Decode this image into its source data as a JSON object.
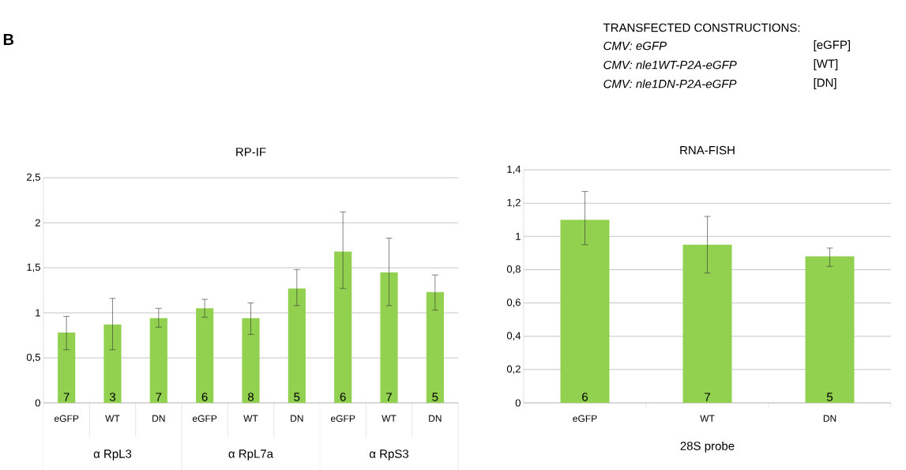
{
  "chart_data": [
    {
      "type": "other",
      "annotations": [
        "B",
        "TRANSFECTED CONSTRUCTIONS:",
        "CMV: eGFP",
        "[eGFP]",
        "CMV: nle1WT-P2A-eGFP",
        "[WT]",
        "CMV: nle1DN-P2A-eGFP",
        "[DN]"
      ]
    },
    {
      "type": "bar",
      "title": "RP-IF",
      "categories": [
        "eGFP",
        "WT",
        "DN",
        "eGFP",
        "WT",
        "DN",
        "eGFP",
        "WT",
        "DN"
      ],
      "values": [
        0.78,
        0.87,
        0.94,
        1.05,
        0.94,
        1.27,
        1.68,
        1.45,
        1.23
      ],
      "errors": [
        [
          0.59,
          0.96
        ],
        [
          0.59,
          1.16
        ],
        [
          0.84,
          1.05
        ],
        [
          0.95,
          1.15
        ],
        [
          0.76,
          1.11
        ],
        [
          1.08,
          1.48
        ],
        [
          1.27,
          2.12
        ],
        [
          1.08,
          1.83
        ],
        [
          1.03,
          1.42
        ]
      ],
      "color": "#92d050",
      "ylim": [
        0,
        2.5
      ],
      "yticks": [
        0,
        {
          "value": 0.5,
          "label": "0,5"
        },
        1,
        {
          "value": 1.5,
          "label": "1,5"
        },
        2,
        {
          "value": 2.5,
          "label": "2,5"
        }
      ],
      "grid": "y",
      "annotations": [
        "7",
        "3",
        "7",
        "6",
        "8",
        "5",
        "6",
        "7",
        "5",
        "α RpL3",
        "α RpL7a",
        "α RpS3"
      ]
    },
    {
      "type": "bar",
      "title": "RNA-FISH",
      "xlabel": "28S probe",
      "categories": [
        "eGFP",
        "WT",
        "DN"
      ],
      "values": [
        1.1,
        0.95,
        0.88
      ],
      "errors": [
        [
          0.95,
          1.27
        ],
        [
          0.78,
          1.12
        ],
        [
          0.82,
          0.93
        ]
      ],
      "annotations": [
        "6",
        "7",
        "5"
      ],
      "color": "#92d050",
      "ylim": [
        0,
        1.4
      ],
      "yticks": [
        0,
        {
          "value": 0.2,
          "label": "0,2"
        },
        {
          "value": 0.4,
          "label": "0,4"
        },
        {
          "value": 0.6,
          "label": "0,6"
        },
        {
          "value": 0.8,
          "label": "0,8"
        },
        1,
        {
          "value": 1.2,
          "label": "1,2"
        },
        {
          "value": 1.4,
          "label": "1,4"
        }
      ],
      "grid": "y"
    }
  ]
}
